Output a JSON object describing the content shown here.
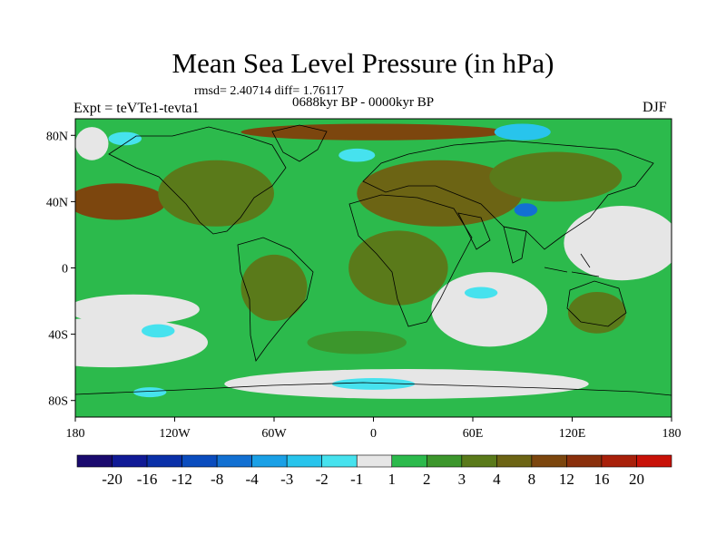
{
  "chart_data": {
    "type": "heatmap",
    "title": "Mean Sea Level Pressure (in hPa)",
    "stats_text": "rmsd= 2.40714 diff= 1.76117",
    "period_text": "0688kyr BP - 0000kyr BP",
    "experiment_text": "Expt = teVTe1-tevta1",
    "season_text": "DJF",
    "xlim": [
      -180,
      180
    ],
    "ylim": [
      -90,
      90
    ],
    "x_ticks": [
      {
        "value": -180,
        "label": "180"
      },
      {
        "value": -120,
        "label": "120W"
      },
      {
        "value": -60,
        "label": "60W"
      },
      {
        "value": 0,
        "label": "0"
      },
      {
        "value": 60,
        "label": "60E"
      },
      {
        "value": 120,
        "label": "120E"
      },
      {
        "value": 180,
        "label": "180"
      }
    ],
    "y_ticks": [
      {
        "value": 80,
        "label": "80N"
      },
      {
        "value": 40,
        "label": "40N"
      },
      {
        "value": 0,
        "label": "0"
      },
      {
        "value": -40,
        "label": "40S"
      },
      {
        "value": -80,
        "label": "80S"
      }
    ],
    "colorbar": {
      "colors": [
        "#1a0a6e",
        "#101a96",
        "#0a30a8",
        "#0a4cbe",
        "#1270d2",
        "#1aa0e6",
        "#28c4ec",
        "#46e2ee",
        "#e6e6e6",
        "#2cba4c",
        "#3c962c",
        "#5a7a1a",
        "#6c6414",
        "#7c460e",
        "#8a300c",
        "#a8200a",
        "#c81208"
      ],
      "labels": [
        "-20",
        "-16",
        "-12",
        "-8",
        "-4",
        "-3",
        "-2",
        "-1",
        "1",
        "2",
        "3",
        "4",
        "8",
        "12",
        "16",
        "20"
      ]
    },
    "field_colors": {
      "ocean_background": "#2cba4c",
      "near_zero": "#e6e6e6",
      "green_dark": "#3c962c",
      "olive": "#5a7a1a",
      "brown_light": "#6c6414",
      "brown": "#7c460e",
      "negative_light": "#46e2ee",
      "negative_mid": "#28c4ec",
      "negative_strong": "#1270d2"
    },
    "regions": [
      {
        "name": "south-pacific-near-zero",
        "level": "near_zero",
        "lon": -160,
        "lat": -45,
        "width_deg": 120,
        "height_deg": 30
      },
      {
        "name": "east-pacific-near-zero",
        "level": "near_zero",
        "lon": -145,
        "lat": -25,
        "width_deg": 80,
        "height_deg": 18
      },
      {
        "name": "southern-ocean-near-zero",
        "level": "near_zero",
        "lon": 20,
        "lat": -70,
        "width_deg": 220,
        "height_deg": 18
      },
      {
        "name": "indian-ocean-near-zero",
        "level": "near_zero",
        "lon": 70,
        "lat": -25,
        "width_deg": 70,
        "height_deg": 45
      },
      {
        "name": "west-pacific-near-zero",
        "level": "near_zero",
        "lon": 150,
        "lat": 15,
        "width_deg": 70,
        "height_deg": 45
      },
      {
        "name": "arctic-near-zero",
        "level": "near_zero",
        "lon": -170,
        "lat": 75,
        "width_deg": 20,
        "height_deg": 20
      },
      {
        "name": "north-pacific-high",
        "level": "brown",
        "lon": -155,
        "lat": 40,
        "width_deg": 60,
        "height_deg": 22
      },
      {
        "name": "north-america-olive",
        "level": "olive",
        "lon": -95,
        "lat": 45,
        "width_deg": 70,
        "height_deg": 40
      },
      {
        "name": "eurasia-brown",
        "level": "brown_light",
        "lon": 40,
        "lat": 45,
        "width_deg": 100,
        "height_deg": 40
      },
      {
        "name": "siberia-olive",
        "level": "olive",
        "lon": 110,
        "lat": 55,
        "width_deg": 80,
        "height_deg": 30
      },
      {
        "name": "africa-olive",
        "level": "olive",
        "lon": 15,
        "lat": 0,
        "width_deg": 60,
        "height_deg": 45
      },
      {
        "name": "south-america-olive",
        "level": "olive",
        "lon": -60,
        "lat": -12,
        "width_deg": 40,
        "height_deg": 40
      },
      {
        "name": "south-atlantic-olive",
        "level": "green_dark",
        "lon": -10,
        "lat": -45,
        "width_deg": 60,
        "height_deg": 14
      },
      {
        "name": "arctic-brown",
        "level": "brown",
        "lon": 0,
        "lat": 82,
        "width_deg": 160,
        "height_deg": 10
      },
      {
        "name": "australia-olive",
        "level": "olive",
        "lon": 135,
        "lat": -27,
        "width_deg": 35,
        "height_deg": 25
      },
      {
        "name": "greenland-sea-low",
        "level": "negative_light",
        "lon": -10,
        "lat": 68,
        "width_deg": 22,
        "height_deg": 8
      },
      {
        "name": "alaska-low",
        "level": "negative_light",
        "lon": -150,
        "lat": 78,
        "width_deg": 20,
        "height_deg": 8
      },
      {
        "name": "barents-sea-low",
        "level": "negative_mid",
        "lon": 90,
        "lat": 82,
        "width_deg": 34,
        "height_deg": 10
      },
      {
        "name": "tibet-low",
        "level": "negative_strong",
        "lon": 92,
        "lat": 35,
        "width_deg": 14,
        "height_deg": 8
      },
      {
        "name": "indian-ocean-low",
        "level": "negative_light",
        "lon": 65,
        "lat": -15,
        "width_deg": 20,
        "height_deg": 7
      },
      {
        "name": "south-pacific-low",
        "level": "negative_light",
        "lon": -130,
        "lat": -38,
        "width_deg": 20,
        "height_deg": 8
      },
      {
        "name": "antarctic-low",
        "level": "negative_light",
        "lon": 0,
        "lat": -70,
        "width_deg": 50,
        "height_deg": 7
      },
      {
        "name": "ross-sea-low",
        "level": "negative_light",
        "lon": -135,
        "lat": -75,
        "width_deg": 20,
        "height_deg": 6
      }
    ]
  }
}
